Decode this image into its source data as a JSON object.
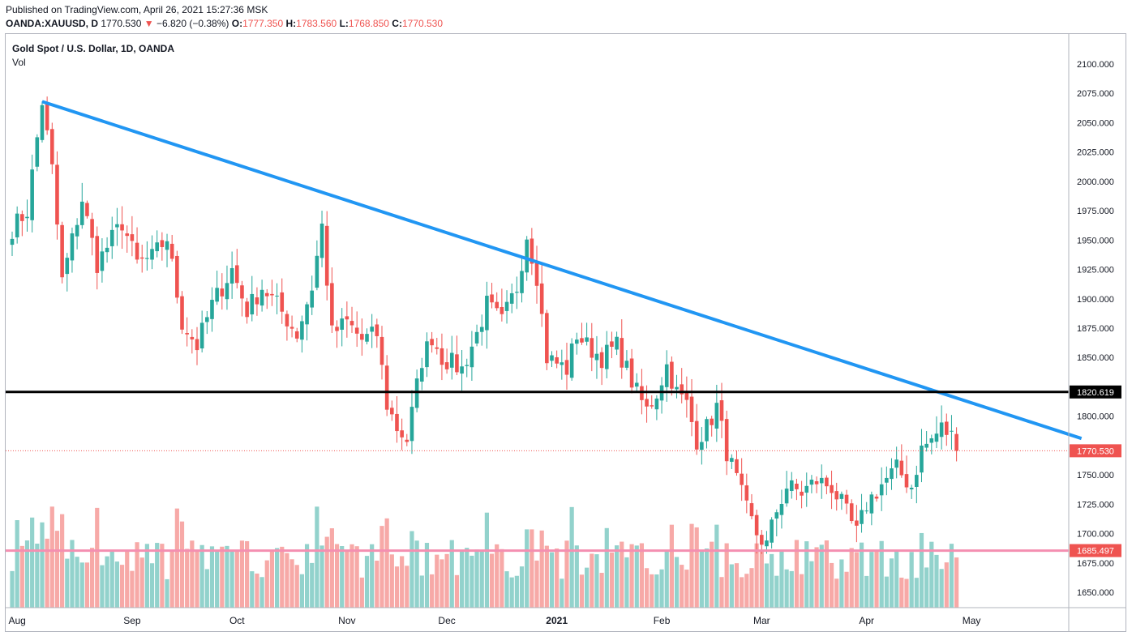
{
  "header": {
    "published": "Published on TradingView.com, April 26, 2021 15:27:36 MSK",
    "symbol": "OANDA:XAUUSD, D",
    "last": "1770.530",
    "change_arrow": "▼",
    "change": "−6.820 (−0.38%)",
    "o_label": "O:",
    "o_value": "1777.350",
    "h_label": "H:",
    "h_value": "1783.560",
    "l_label": "L:",
    "l_value": "1768.850",
    "c_label": "C:",
    "c_value": "1770.530"
  },
  "colors": {
    "up": "#26a69a",
    "down": "#ef5350",
    "trendline": "#2196f3",
    "resistance": "#000000",
    "support": "#f48fb1"
  },
  "chart_data": {
    "type": "candlestick",
    "title": "Gold Spot / U.S. Dollar, 1D, OANDA",
    "volume_label": "Vol",
    "y_ticks": [
      "1650.000",
      "1675.000",
      "1700.000",
      "1725.000",
      "1750.000",
      "1775.000",
      "1800.000",
      "1825.000",
      "1850.000",
      "1875.000",
      "1900.000",
      "1925.000",
      "1950.000",
      "1975.000",
      "2000.000",
      "2025.000",
      "2050.000",
      "2075.000",
      "2100.000"
    ],
    "ylim": [
      1637,
      2115
    ],
    "x_ticks": [
      "Aug",
      "Sep",
      "Oct",
      "Nov",
      "Dec",
      "2021",
      "Feb",
      "Mar",
      "Apr",
      "May"
    ],
    "xlim_bars": [
      -1,
      213
    ],
    "levels": [
      {
        "name": "resistance",
        "value": 1820.619,
        "label": "1820.619"
      },
      {
        "name": "support",
        "value": 1685.497,
        "label": "1685.497"
      },
      {
        "name": "last",
        "value": 1770.53,
        "label": "1770.530"
      }
    ],
    "trendline": {
      "from": [
        6,
        2068
      ],
      "to": [
        214,
        1781
      ]
    },
    "anchors": [
      [
        0,
        1960
      ],
      [
        3,
        1975
      ],
      [
        6,
        2068
      ],
      [
        8,
        2010
      ],
      [
        10,
        1915
      ],
      [
        14,
        1985
      ],
      [
        17,
        1930
      ],
      [
        22,
        1965
      ],
      [
        25,
        1930
      ],
      [
        28,
        1935
      ],
      [
        31,
        1952
      ],
      [
        34,
        1880
      ],
      [
        37,
        1860
      ],
      [
        40,
        1895
      ],
      [
        44,
        1925
      ],
      [
        47,
        1890
      ],
      [
        50,
        1910
      ],
      [
        53,
        1895
      ],
      [
        57,
        1870
      ],
      [
        60,
        1910
      ],
      [
        62,
        1962
      ],
      [
        64,
        1870
      ],
      [
        67,
        1880
      ],
      [
        70,
        1865
      ],
      [
        73,
        1870
      ],
      [
        75,
        1810
      ],
      [
        77,
        1790
      ],
      [
        79,
        1780
      ],
      [
        82,
        1848
      ],
      [
        84,
        1868
      ],
      [
        86,
        1850
      ],
      [
        90,
        1840
      ],
      [
        93,
        1870
      ],
      [
        95,
        1895
      ],
      [
        98,
        1880
      ],
      [
        101,
        1910
      ],
      [
        103,
        1955
      ],
      [
        105,
        1920
      ],
      [
        107,
        1850
      ],
      [
        111,
        1840
      ],
      [
        113,
        1870
      ],
      [
        115,
        1860
      ],
      [
        118,
        1850
      ],
      [
        121,
        1860
      ],
      [
        123,
        1840
      ],
      [
        125,
        1820
      ],
      [
        127,
        1805
      ],
      [
        129,
        1820
      ],
      [
        131,
        1843
      ],
      [
        133,
        1820
      ],
      [
        135,
        1810
      ],
      [
        137,
        1780
      ],
      [
        139,
        1790
      ],
      [
        141,
        1808
      ],
      [
        143,
        1770
      ],
      [
        145,
        1745
      ],
      [
        147,
        1720
      ],
      [
        149,
        1700
      ],
      [
        151,
        1690
      ],
      [
        153,
        1720
      ],
      [
        155,
        1740
      ],
      [
        158,
        1735
      ],
      [
        161,
        1745
      ],
      [
        164,
        1740
      ],
      [
        166,
        1725
      ],
      [
        169,
        1700
      ],
      [
        171,
        1725
      ],
      [
        174,
        1742
      ],
      [
        177,
        1755
      ],
      [
        180,
        1740
      ],
      [
        182,
        1772
      ],
      [
        184,
        1780
      ],
      [
        186,
        1790
      ],
      [
        188,
        1783
      ],
      [
        189,
        1770.53
      ]
    ],
    "candle_count": 190
  }
}
